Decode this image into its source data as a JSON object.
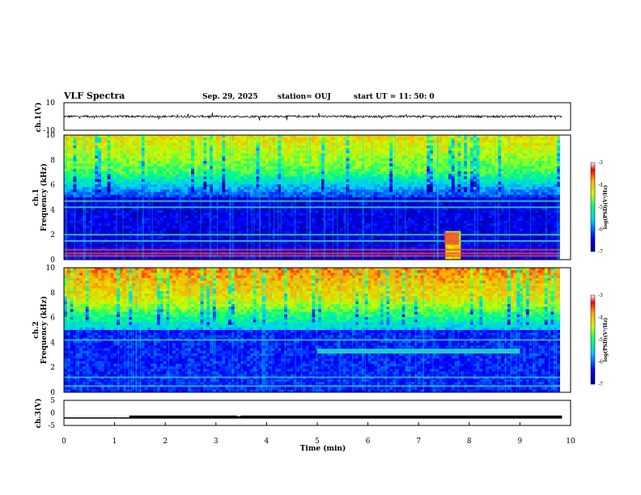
{
  "header": {
    "title": "VLF Spectra",
    "date": "Sep. 29, 2025",
    "station": "station= OUJ",
    "start_ut": "start  UT  =   11: 50: 0"
  },
  "colors": {
    "spectrogram_low": "#00007a",
    "spectrogram_high": "#e60000",
    "line": "#000000"
  },
  "chart_data": [
    {
      "type": "line",
      "name": "ch1-waveform",
      "ylabel": "ch.1(V)",
      "ylim": [
        -10,
        10
      ],
      "yticks": [
        10,
        -10
      ],
      "xlim": [
        0,
        10
      ],
      "description_values": {
        "baseline": 0,
        "noise_amplitude": 1
      }
    },
    {
      "type": "heatmap",
      "name": "ch1-spectrogram",
      "ylabel": "ch.1\nFrequency (kHz)",
      "ylabel_line1": "ch.1",
      "ylabel_line2": "Frequency (kHz)",
      "ylim": [
        0,
        10
      ],
      "yticks": [
        0,
        2,
        4,
        6,
        8,
        10
      ],
      "xlim": [
        0,
        10
      ],
      "colorbar": {
        "label": "log(PSD)(V²/Hz)",
        "range": [
          -7,
          -3
        ],
        "ticks": [
          -3,
          -4,
          -5,
          -6,
          -7
        ]
      },
      "features": {
        "bands_khz": [
          0.3,
          0.5,
          0.8,
          1.5,
          2.0,
          4.2,
          4.7
        ],
        "burst_time_min": [
          7.5,
          7.8
        ]
      }
    },
    {
      "type": "heatmap",
      "name": "ch2-spectrogram",
      "ylabel": "ch.2\nFrequency (kHz)",
      "ylabel_line1": "ch.2",
      "ylabel_line2": "Frequency (kHz)",
      "ylim": [
        0,
        10
      ],
      "yticks": [
        0,
        2,
        4,
        6,
        8,
        10
      ],
      "xlim": [
        0,
        10
      ],
      "colorbar": {
        "label": "log(PSD)(V²/Hz)",
        "range": [
          -7,
          -3
        ],
        "ticks": [
          -3,
          -4,
          -5,
          -6,
          -7
        ]
      },
      "features": {
        "band_khz": 3.3,
        "band_time_min": [
          5.0,
          9.0
        ]
      }
    },
    {
      "type": "line",
      "name": "ch3-voltage",
      "ylabel": "ch.3(V)",
      "ylim": [
        -5,
        5
      ],
      "yticks": [
        5,
        0,
        -5
      ],
      "xlim": [
        0,
        10
      ],
      "xticks": [
        0,
        1,
        2,
        3,
        4,
        5,
        6,
        7,
        8,
        9,
        10
      ],
      "xlabel": "Time (min)",
      "x": [
        0,
        1.3,
        1.3,
        3.4,
        3.4,
        3.5,
        3.5,
        9.83
      ],
      "values": [
        -2.0,
        -2.0,
        -1.3,
        -1.3,
        -1.6,
        -1.6,
        -1.3,
        -1.3
      ]
    }
  ]
}
